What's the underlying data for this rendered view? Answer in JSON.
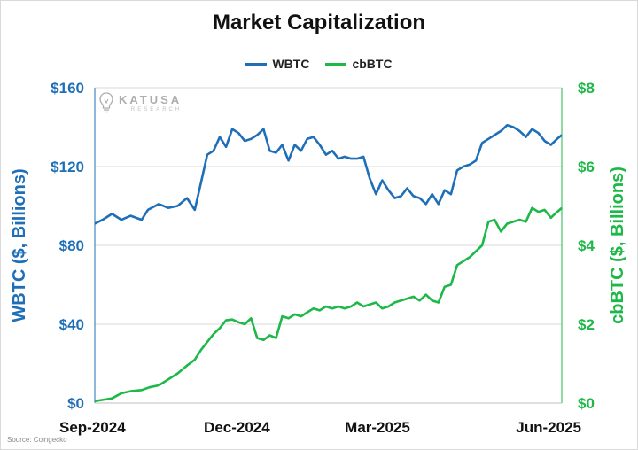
{
  "colors": {
    "wbtc": "#1f6fb8",
    "cbbtc": "#1db848",
    "grid": "#d9d9d9"
  },
  "header": {
    "title": "Market Capitalization"
  },
  "legend": [
    {
      "label": "WBTC",
      "color": "#1f6fb8"
    },
    {
      "label": "cbBTC",
      "color": "#1db848"
    }
  ],
  "watermark": {
    "name": "KATUSA",
    "sub": "RESEARCH",
    "icon": "lightbulb-icon"
  },
  "source": "Source: Coingecko",
  "chart_data": {
    "type": "line",
    "x_ticks": [
      "Sep-2024",
      "Dec-2024",
      "Mar-2025",
      "Jun-2025"
    ],
    "ylabel_left": "WBTC ($, Billions)",
    "ylabel_right": "cbBTC ($, Billions)",
    "y_left": {
      "min": 0,
      "max": 160,
      "ticks": [
        0,
        40,
        80,
        120,
        160
      ],
      "tick_labels": [
        "$0",
        "$40",
        "$80",
        "$120",
        "$160"
      ]
    },
    "y_right": {
      "min": 0,
      "max": 8,
      "ticks": [
        0,
        2,
        4,
        6,
        8
      ],
      "tick_labels": [
        "$0",
        "$2",
        "$4",
        "$6",
        "$8"
      ]
    },
    "grid": "horizontal",
    "legend_position": "top-center",
    "series": [
      {
        "name": "WBTC",
        "axis": "left",
        "points": [
          [
            "2024-09-01",
            91
          ],
          [
            "2024-09-06",
            93
          ],
          [
            "2024-09-12",
            96
          ],
          [
            "2024-09-18",
            93
          ],
          [
            "2024-09-24",
            95
          ],
          [
            "2024-10-01",
            93
          ],
          [
            "2024-10-05",
            98
          ],
          [
            "2024-10-12",
            101
          ],
          [
            "2024-10-18",
            99
          ],
          [
            "2024-10-24",
            100
          ],
          [
            "2024-10-30",
            104
          ],
          [
            "2024-11-04",
            98
          ],
          [
            "2024-11-08",
            112
          ],
          [
            "2024-11-12",
            126
          ],
          [
            "2024-11-16",
            128
          ],
          [
            "2024-11-20",
            135
          ],
          [
            "2024-11-24",
            130
          ],
          [
            "2024-11-28",
            139
          ],
          [
            "2024-12-02",
            137
          ],
          [
            "2024-12-06",
            133
          ],
          [
            "2024-12-10",
            134
          ],
          [
            "2024-12-14",
            136
          ],
          [
            "2024-12-18",
            139
          ],
          [
            "2024-12-22",
            128
          ],
          [
            "2024-12-26",
            127
          ],
          [
            "2024-12-30",
            131
          ],
          [
            "2025-01-03",
            123
          ],
          [
            "2025-01-07",
            131
          ],
          [
            "2025-01-11",
            128
          ],
          [
            "2025-01-15",
            134
          ],
          [
            "2025-01-19",
            135
          ],
          [
            "2025-01-23",
            131
          ],
          [
            "2025-01-27",
            126
          ],
          [
            "2025-01-31",
            128
          ],
          [
            "2025-02-04",
            124
          ],
          [
            "2025-02-08",
            125
          ],
          [
            "2025-02-12",
            124
          ],
          [
            "2025-02-16",
            124
          ],
          [
            "2025-02-20",
            125
          ],
          [
            "2025-02-24",
            114
          ],
          [
            "2025-02-28",
            106
          ],
          [
            "2025-03-04",
            113
          ],
          [
            "2025-03-08",
            108
          ],
          [
            "2025-03-12",
            104
          ],
          [
            "2025-03-16",
            105
          ],
          [
            "2025-03-20",
            109
          ],
          [
            "2025-03-24",
            105
          ],
          [
            "2025-03-28",
            104
          ],
          [
            "2025-04-01",
            101
          ],
          [
            "2025-04-05",
            106
          ],
          [
            "2025-04-09",
            101
          ],
          [
            "2025-04-13",
            108
          ],
          [
            "2025-04-17",
            106
          ],
          [
            "2025-04-21",
            118
          ],
          [
            "2025-04-25",
            120
          ],
          [
            "2025-04-29",
            121
          ],
          [
            "2025-05-03",
            123
          ],
          [
            "2025-05-07",
            132
          ],
          [
            "2025-05-11",
            134
          ],
          [
            "2025-05-15",
            136
          ],
          [
            "2025-05-19",
            138
          ],
          [
            "2025-05-23",
            141
          ],
          [
            "2025-05-27",
            140
          ],
          [
            "2025-05-31",
            138
          ],
          [
            "2025-06-04",
            135
          ],
          [
            "2025-06-08",
            139
          ],
          [
            "2025-06-12",
            137
          ],
          [
            "2025-06-16",
            133
          ],
          [
            "2025-06-20",
            131
          ],
          [
            "2025-06-24",
            134
          ],
          [
            "2025-06-27",
            136
          ]
        ]
      },
      {
        "name": "cbBTC",
        "axis": "right",
        "points": [
          [
            "2024-09-01",
            0.05
          ],
          [
            "2024-09-06",
            0.08
          ],
          [
            "2024-09-12",
            0.12
          ],
          [
            "2024-09-18",
            0.25
          ],
          [
            "2024-09-24",
            0.3
          ],
          [
            "2024-10-01",
            0.33
          ],
          [
            "2024-10-06",
            0.4
          ],
          [
            "2024-10-12",
            0.45
          ],
          [
            "2024-10-18",
            0.6
          ],
          [
            "2024-10-24",
            0.75
          ],
          [
            "2024-10-30",
            0.95
          ],
          [
            "2024-11-04",
            1.1
          ],
          [
            "2024-11-08",
            1.35
          ],
          [
            "2024-11-12",
            1.55
          ],
          [
            "2024-11-16",
            1.75
          ],
          [
            "2024-11-20",
            1.9
          ],
          [
            "2024-11-24",
            2.1
          ],
          [
            "2024-11-28",
            2.12
          ],
          [
            "2024-12-02",
            2.05
          ],
          [
            "2024-12-06",
            2.0
          ],
          [
            "2024-12-10",
            2.15
          ],
          [
            "2024-12-14",
            1.65
          ],
          [
            "2024-12-18",
            1.6
          ],
          [
            "2024-12-22",
            1.72
          ],
          [
            "2024-12-26",
            1.65
          ],
          [
            "2024-12-30",
            2.2
          ],
          [
            "2025-01-03",
            2.15
          ],
          [
            "2025-01-07",
            2.25
          ],
          [
            "2025-01-11",
            2.2
          ],
          [
            "2025-01-15",
            2.3
          ],
          [
            "2025-01-19",
            2.4
          ],
          [
            "2025-01-23",
            2.35
          ],
          [
            "2025-01-27",
            2.45
          ],
          [
            "2025-01-31",
            2.4
          ],
          [
            "2025-02-04",
            2.45
          ],
          [
            "2025-02-08",
            2.4
          ],
          [
            "2025-02-12",
            2.45
          ],
          [
            "2025-02-16",
            2.55
          ],
          [
            "2025-02-20",
            2.45
          ],
          [
            "2025-02-24",
            2.5
          ],
          [
            "2025-02-28",
            2.55
          ],
          [
            "2025-03-04",
            2.4
          ],
          [
            "2025-03-08",
            2.45
          ],
          [
            "2025-03-12",
            2.55
          ],
          [
            "2025-03-16",
            2.6
          ],
          [
            "2025-03-20",
            2.65
          ],
          [
            "2025-03-24",
            2.7
          ],
          [
            "2025-03-28",
            2.6
          ],
          [
            "2025-04-01",
            2.75
          ],
          [
            "2025-04-05",
            2.6
          ],
          [
            "2025-04-09",
            2.55
          ],
          [
            "2025-04-13",
            2.95
          ],
          [
            "2025-04-17",
            3.0
          ],
          [
            "2025-04-21",
            3.5
          ],
          [
            "2025-04-25",
            3.6
          ],
          [
            "2025-04-29",
            3.7
          ],
          [
            "2025-05-03",
            3.85
          ],
          [
            "2025-05-07",
            4.0
          ],
          [
            "2025-05-11",
            4.6
          ],
          [
            "2025-05-15",
            4.65
          ],
          [
            "2025-05-19",
            4.35
          ],
          [
            "2025-05-23",
            4.55
          ],
          [
            "2025-05-27",
            4.6
          ],
          [
            "2025-05-31",
            4.65
          ],
          [
            "2025-06-04",
            4.6
          ],
          [
            "2025-06-08",
            4.95
          ],
          [
            "2025-06-12",
            4.85
          ],
          [
            "2025-06-16",
            4.9
          ],
          [
            "2025-06-20",
            4.7
          ],
          [
            "2025-06-24",
            4.85
          ],
          [
            "2025-06-27",
            4.95
          ]
        ]
      }
    ]
  }
}
